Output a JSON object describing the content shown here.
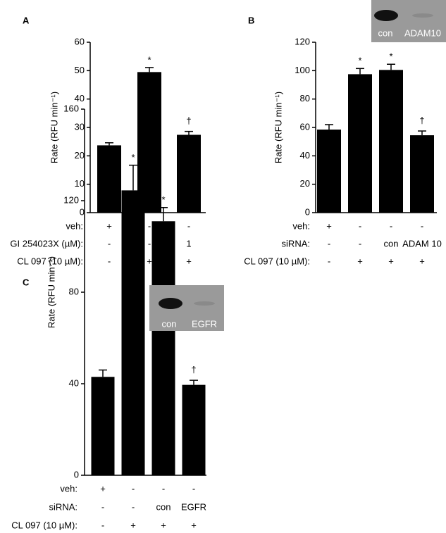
{
  "chart_data": [
    {
      "type": "bar",
      "panel_label": "A",
      "y_label": "Rate (RFU min⁻¹)",
      "color": "#000000",
      "values": [
        23.7,
        49.5,
        27.4
      ],
      "errors": [
        0.9,
        1.6,
        1.2
      ],
      "annotations": [
        null,
        "*",
        "†"
      ],
      "ylim": [
        0,
        60
      ],
      "yticks": [
        0,
        10,
        20,
        30,
        40,
        50,
        60
      ],
      "conditions": [
        {
          "label": "veh:",
          "values": [
            "+",
            "-",
            "-"
          ]
        },
        {
          "label": "GI 254023X (µM):",
          "values": [
            "-",
            "-",
            "1"
          ]
        },
        {
          "label": "CL 097 (10 µM):",
          "values": [
            "-",
            "+",
            "+"
          ]
        }
      ]
    },
    {
      "type": "bar",
      "panel_label": "B",
      "y_label": "Rate (RFU min⁻¹)",
      "color": "#000000",
      "values": [
        58.5,
        97.5,
        100.5,
        54.5
      ],
      "errors": [
        3.5,
        4,
        4,
        3
      ],
      "annotations": [
        null,
        "*",
        "*",
        "†"
      ],
      "ylim": [
        0,
        120
      ],
      "yticks": [
        0,
        20,
        40,
        60,
        80,
        100,
        120
      ],
      "conditions": [
        {
          "label": "veh:",
          "values": [
            "+",
            "-",
            "-",
            "-"
          ]
        },
        {
          "label": "siRNA:",
          "values": [
            "-",
            "-",
            "con",
            "ADAM 10"
          ]
        },
        {
          "label": "CL 097 (10 µM):",
          "values": [
            "-",
            "+",
            "+",
            "+"
          ]
        }
      ],
      "inset_labels": [
        "con",
        "ADAM10"
      ]
    },
    {
      "type": "bar",
      "panel_label": "C",
      "y_label": "Rate (RFU min⁻¹)",
      "color": "#000000",
      "values": [
        43,
        124.5,
        111,
        39.5
      ],
      "errors": [
        3,
        11,
        6,
        2
      ],
      "annotations": [
        null,
        "*",
        "*",
        "†"
      ],
      "ylim": [
        0,
        160
      ],
      "yticks": [
        0,
        40,
        80,
        120,
        160
      ],
      "conditions": [
        {
          "label": "veh:",
          "values": [
            "+",
            "-",
            "-",
            "-"
          ]
        },
        {
          "label": "siRNA:",
          "values": [
            "-",
            "-",
            "con",
            "EGFR"
          ]
        },
        {
          "label": "CL 097 (10 µM):",
          "values": [
            "-",
            "+",
            "+",
            "+"
          ]
        }
      ],
      "inset_labels": [
        "con",
        "EGFR"
      ]
    }
  ]
}
